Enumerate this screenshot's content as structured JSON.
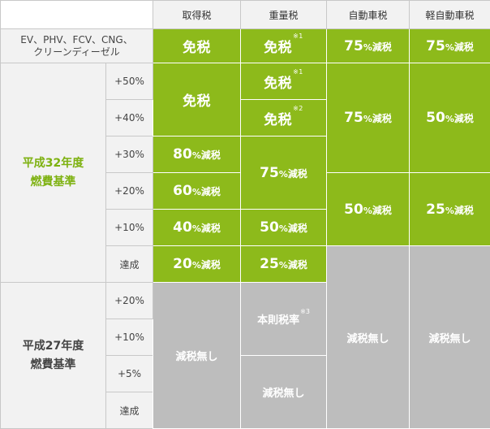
{
  "header": {
    "acquisition": "取得税",
    "weight": "重量税",
    "automobile": "自動車税",
    "light": "軽自動車税"
  },
  "eco_row": {
    "label_line1": "EV、PHV、FCV、CNG、",
    "label_line2": "クリーンディーゼル",
    "acquisition": "免税",
    "weight": "免税",
    "weight_note": "※1",
    "automobile_num": "75",
    "automobile_pct": "%",
    "automobile_suffix": "減税",
    "light_num": "75",
    "light_pct": "%",
    "light_suffix": "減税"
  },
  "group_h32": {
    "label_line1": "平成32年度",
    "label_line2": "燃費基準",
    "levels": [
      "+50%",
      "+40%",
      "+30%",
      "+20%",
      "+10%",
      "達成"
    ],
    "acquisition": {
      "exempt": "免税",
      "r30_num": "80",
      "r30_pct": "%",
      "r30_suf": "減税",
      "r20_num": "60",
      "r20_pct": "%",
      "r20_suf": "減税",
      "r10_num": "40",
      "r10_pct": "%",
      "r10_suf": "減税",
      "met_num": "20",
      "met_pct": "%",
      "met_suf": "減税"
    },
    "weight": {
      "r50": "免税",
      "r50_note": "※1",
      "r40": "免税",
      "r40_note": "※2",
      "r30_20_num": "75",
      "r30_20_pct": "%",
      "r30_20_suf": "減税",
      "r10_num": "50",
      "r10_pct": "%",
      "r10_suf": "減税",
      "met_num": "25",
      "met_pct": "%",
      "met_suf": "減税"
    },
    "automobile": {
      "top_num": "75",
      "top_pct": "%",
      "top_suf": "減税",
      "bottom_num": "50",
      "bottom_pct": "%",
      "bottom_suf": "減税"
    },
    "light": {
      "top_num": "50",
      "top_pct": "%",
      "top_suf": "減税",
      "bottom_num": "25",
      "bottom_pct": "%",
      "bottom_suf": "減税"
    }
  },
  "group_h27": {
    "label_line1": "平成27年度",
    "label_line2": "燃費基準",
    "levels": [
      "+20%",
      "+10%",
      "+5%",
      "達成"
    ],
    "acquisition": "減税無し",
    "weight_top": "本則税率",
    "weight_top_note": "※3",
    "weight_bottom": "減税無し"
  },
  "no_reduction_automobile": "減税無し",
  "no_reduction_light": "減税無し",
  "colors": {
    "green": "#8dba1b",
    "gray": "#bdbdbd",
    "label_bg": "#f2f2f2",
    "accent_text": "#7db10f"
  }
}
